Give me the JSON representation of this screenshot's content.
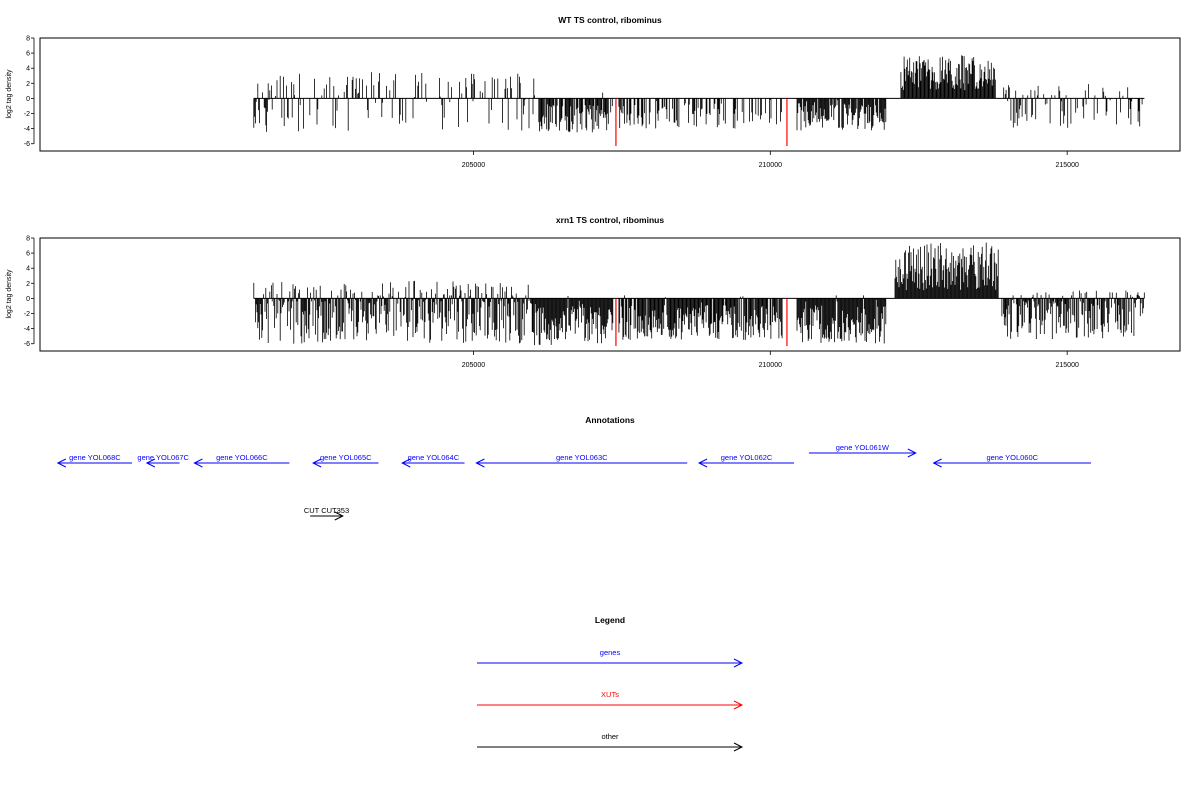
{
  "chart_data": [
    {
      "type": "bar",
      "title": "WT TS control, ribominus",
      "xlabel": "",
      "ylabel": "log2 tag density",
      "xlim": [
        197700,
        216900
      ],
      "ylim": [
        -6.5,
        8.5
      ],
      "xticks": [
        205000,
        210000,
        215000
      ],
      "xtick_labels": [
        "205000",
        "210000",
        "215000"
      ],
      "yticks": [
        8,
        6,
        4,
        2,
        0,
        -2,
        -4,
        -6
      ],
      "ytick_labels": [
        "8",
        "6",
        "4",
        "2",
        "0",
        "-2",
        "-4",
        "-6"
      ],
      "grid": false,
      "baseline_range": [
        201300,
        216300
      ],
      "colors": {
        "bars": "#000000",
        "markers": "#ff0000"
      },
      "markers": [
        {
          "x": 207400,
          "y": -6.3
        },
        {
          "x": 210280,
          "y": -6.3
        }
      ],
      "regions": [
        {
          "range": [
            201300,
            206100
          ],
          "y": [
            -4.5,
            3.5
          ],
          "density": 0.35
        },
        {
          "range": [
            206100,
            207350
          ],
          "y": [
            -4.5,
            1.0
          ],
          "density": 0.85
        },
        {
          "range": [
            207450,
            209500
          ],
          "y": [
            -4.0,
            0.0
          ],
          "density": 0.5
        },
        {
          "range": [
            209500,
            210200
          ],
          "y": [
            -3.5,
            0.0
          ],
          "density": 0.3
        },
        {
          "range": [
            210450,
            211950
          ],
          "y": [
            -4.3,
            0.0
          ],
          "density": 0.9
        },
        {
          "range": [
            212200,
            213800
          ],
          "y": [
            1.0,
            5.8
          ],
          "density": 1.0
        },
        {
          "range": [
            213850,
            216300
          ],
          "y": [
            -4.0,
            2.0
          ],
          "density": 0.45
        }
      ]
    },
    {
      "type": "bar",
      "title": "xrn1 TS control, ribominus",
      "xlabel": "",
      "ylabel": "log2 tag density",
      "xlim": [
        197700,
        216900
      ],
      "ylim": [
        -6.5,
        8.5
      ],
      "xticks": [
        205000,
        210000,
        215000
      ],
      "xtick_labels": [
        "205000",
        "210000",
        "215000"
      ],
      "yticks": [
        8,
        6,
        4,
        2,
        0,
        -2,
        -4,
        -6
      ],
      "ytick_labels": [
        "8",
        "6",
        "4",
        "2",
        "0",
        "-2",
        "-4",
        "-6"
      ],
      "grid": false,
      "baseline_range": [
        201300,
        216300
      ],
      "colors": {
        "bars": "#000000",
        "markers": "#ff0000"
      },
      "markers": [
        {
          "x": 207400,
          "y": -6.3
        },
        {
          "x": 210280,
          "y": -6.3
        }
      ],
      "regions": [
        {
          "range": [
            201300,
            206000
          ],
          "y": [
            -6.0,
            2.4
          ],
          "density": 0.9
        },
        {
          "range": [
            206000,
            207350
          ],
          "y": [
            -6.2,
            0.5
          ],
          "density": 1.0
        },
        {
          "range": [
            207450,
            210200
          ],
          "y": [
            -5.5,
            0.5
          ],
          "density": 0.9
        },
        {
          "range": [
            210450,
            211950
          ],
          "y": [
            -6.0,
            0.6
          ],
          "density": 1.0
        },
        {
          "range": [
            212100,
            213850
          ],
          "y": [
            1.0,
            7.4
          ],
          "density": 1.0
        },
        {
          "range": [
            213900,
            216300
          ],
          "y": [
            -5.5,
            1.2
          ],
          "density": 0.9
        }
      ]
    }
  ],
  "annotations": {
    "title": "Annotations",
    "genes": [
      {
        "label": "gene YOL068C",
        "start": 198000,
        "end": 199250,
        "strand": "-",
        "color": "#0000ff"
      },
      {
        "label": "gene YOL067C",
        "start": 199500,
        "end": 200050,
        "strand": "-",
        "color": "#0000ff"
      },
      {
        "label": "gene YOL066C",
        "start": 200300,
        "end": 201900,
        "strand": "-",
        "color": "#0000ff"
      },
      {
        "label": "gene YOL065C",
        "start": 202300,
        "end": 203400,
        "strand": "-",
        "color": "#0000ff"
      },
      {
        "label": "gene YOL064C",
        "start": 203800,
        "end": 204850,
        "strand": "-",
        "color": "#0000ff"
      },
      {
        "label": "gene YOL063C",
        "start": 205050,
        "end": 208600,
        "strand": "-",
        "color": "#0000ff"
      },
      {
        "label": "gene YOL062C",
        "start": 208800,
        "end": 210400,
        "strand": "-",
        "color": "#0000ff"
      },
      {
        "label": "gene YOL061W",
        "start": 210650,
        "end": 212450,
        "strand": "+",
        "color": "#0000ff"
      },
      {
        "label": "gene YOL060C",
        "start": 212750,
        "end": 215400,
        "strand": "-",
        "color": "#0000ff"
      }
    ],
    "other": [
      {
        "label": "CUT CUT353",
        "start": 202250,
        "end": 202800,
        "strand": "+",
        "color": "#000000"
      }
    ]
  },
  "legend": {
    "title": "Legend",
    "items": [
      {
        "label": "genes",
        "color": "#0000ff"
      },
      {
        "label": "XUTs",
        "color": "#ff0000"
      },
      {
        "label": "other",
        "color": "#000000"
      }
    ]
  }
}
